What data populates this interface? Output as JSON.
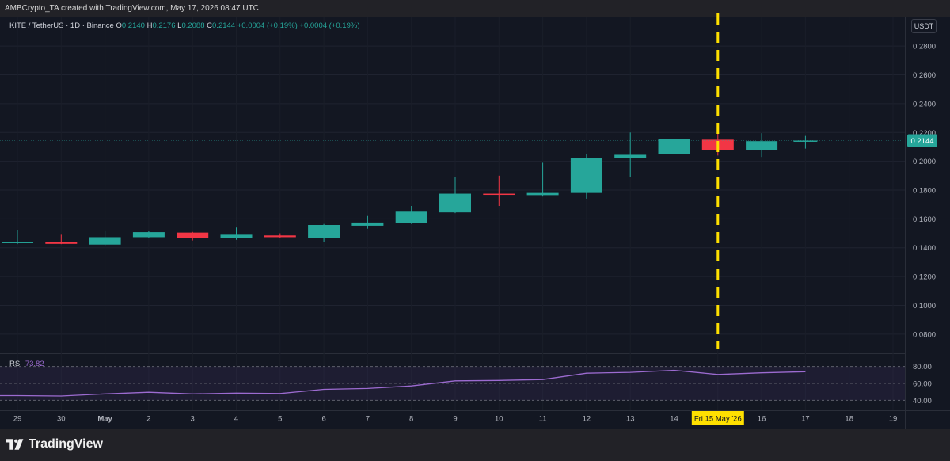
{
  "header": {
    "attribution": "AMBCrypto_TA created with TradingView.com, May 17, 2026 08:47 UTC"
  },
  "legend": {
    "symbol": "KITE / TetherUS · 1D · Binance",
    "o_label": "O",
    "o_value": "0.2140",
    "h_label": "H",
    "h_value": "0.2176",
    "l_label": "L",
    "l_value": "0.2088",
    "c_label": "C",
    "c_value": "0.2144",
    "change": "+0.0004 (+0.19%)",
    "change2": "+0.0004 (+0.19%)"
  },
  "currency_label": "USDT",
  "brand": {
    "name": "TradingView"
  },
  "colors": {
    "up": "#26a69a",
    "down": "#f23645",
    "rsi": "#9c6bd0",
    "highlight": "#ffe000"
  },
  "rsi": {
    "label": "RSI",
    "value": "73.82",
    "levels": [
      40,
      60,
      80
    ]
  },
  "chart_data": {
    "type": "candlestick",
    "x_ticks": [
      "29",
      "30",
      "May",
      "2",
      "3",
      "4",
      "5",
      "6",
      "7",
      "8",
      "9",
      "10",
      "11",
      "12",
      "13",
      "14",
      "Fri 15 May '26",
      "16",
      "17",
      "18",
      "19"
    ],
    "highlighted_x": "Fri 15 May '26",
    "y_ticks": [
      "0.2800",
      "0.2600",
      "0.2400",
      "0.2200",
      "0.2000",
      "0.1800",
      "0.1600",
      "0.1400",
      "0.1200",
      "0.1000",
      "0.0800"
    ],
    "ylim": [
      0.07,
      0.29
    ],
    "last_price": "0.2144",
    "candles": [
      {
        "date": "29",
        "o": 0.1436,
        "h": 0.1525,
        "l": 0.1425,
        "c": 0.144
      },
      {
        "date": "30",
        "o": 0.144,
        "h": 0.149,
        "l": 0.1425,
        "c": 0.1427
      },
      {
        "date": "May",
        "o": 0.1422,
        "h": 0.152,
        "l": 0.1415,
        "c": 0.1473
      },
      {
        "date": "2",
        "o": 0.1473,
        "h": 0.1515,
        "l": 0.1465,
        "c": 0.1508
      },
      {
        "date": "3",
        "o": 0.1505,
        "h": 0.151,
        "l": 0.145,
        "c": 0.1465
      },
      {
        "date": "4",
        "o": 0.1465,
        "h": 0.154,
        "l": 0.1455,
        "c": 0.149
      },
      {
        "date": "5",
        "o": 0.1485,
        "h": 0.15,
        "l": 0.1465,
        "c": 0.1473
      },
      {
        "date": "6",
        "o": 0.147,
        "h": 0.1565,
        "l": 0.1438,
        "c": 0.1558
      },
      {
        "date": "7",
        "o": 0.1553,
        "h": 0.162,
        "l": 0.1532,
        "c": 0.1575
      },
      {
        "date": "8",
        "o": 0.1573,
        "h": 0.169,
        "l": 0.1565,
        "c": 0.165
      },
      {
        "date": "9",
        "o": 0.1645,
        "h": 0.189,
        "l": 0.164,
        "c": 0.1775
      },
      {
        "date": "10",
        "o": 0.1775,
        "h": 0.19,
        "l": 0.169,
        "c": 0.1768
      },
      {
        "date": "11",
        "o": 0.1765,
        "h": 0.199,
        "l": 0.1755,
        "c": 0.178
      },
      {
        "date": "12",
        "o": 0.178,
        "h": 0.205,
        "l": 0.174,
        "c": 0.202
      },
      {
        "date": "13",
        "o": 0.202,
        "h": 0.22,
        "l": 0.189,
        "c": 0.2045
      },
      {
        "date": "14",
        "o": 0.205,
        "h": 0.232,
        "l": 0.204,
        "c": 0.2155
      },
      {
        "date": "Fri 15 May '26",
        "o": 0.215,
        "h": 0.22,
        "l": 0.204,
        "c": 0.208
      },
      {
        "date": "16",
        "o": 0.208,
        "h": 0.2195,
        "l": 0.203,
        "c": 0.214
      },
      {
        "date": "17",
        "o": 0.214,
        "h": 0.2176,
        "l": 0.2088,
        "c": 0.2144
      }
    ],
    "rsi_values": [
      45.5,
      45.0,
      47.5,
      49.5,
      47.5,
      48.5,
      48.0,
      53.0,
      54.0,
      57.0,
      63.0,
      63.5,
      64.5,
      72.0,
      73.0,
      75.5,
      70.5,
      72.5,
      73.82
    ]
  }
}
